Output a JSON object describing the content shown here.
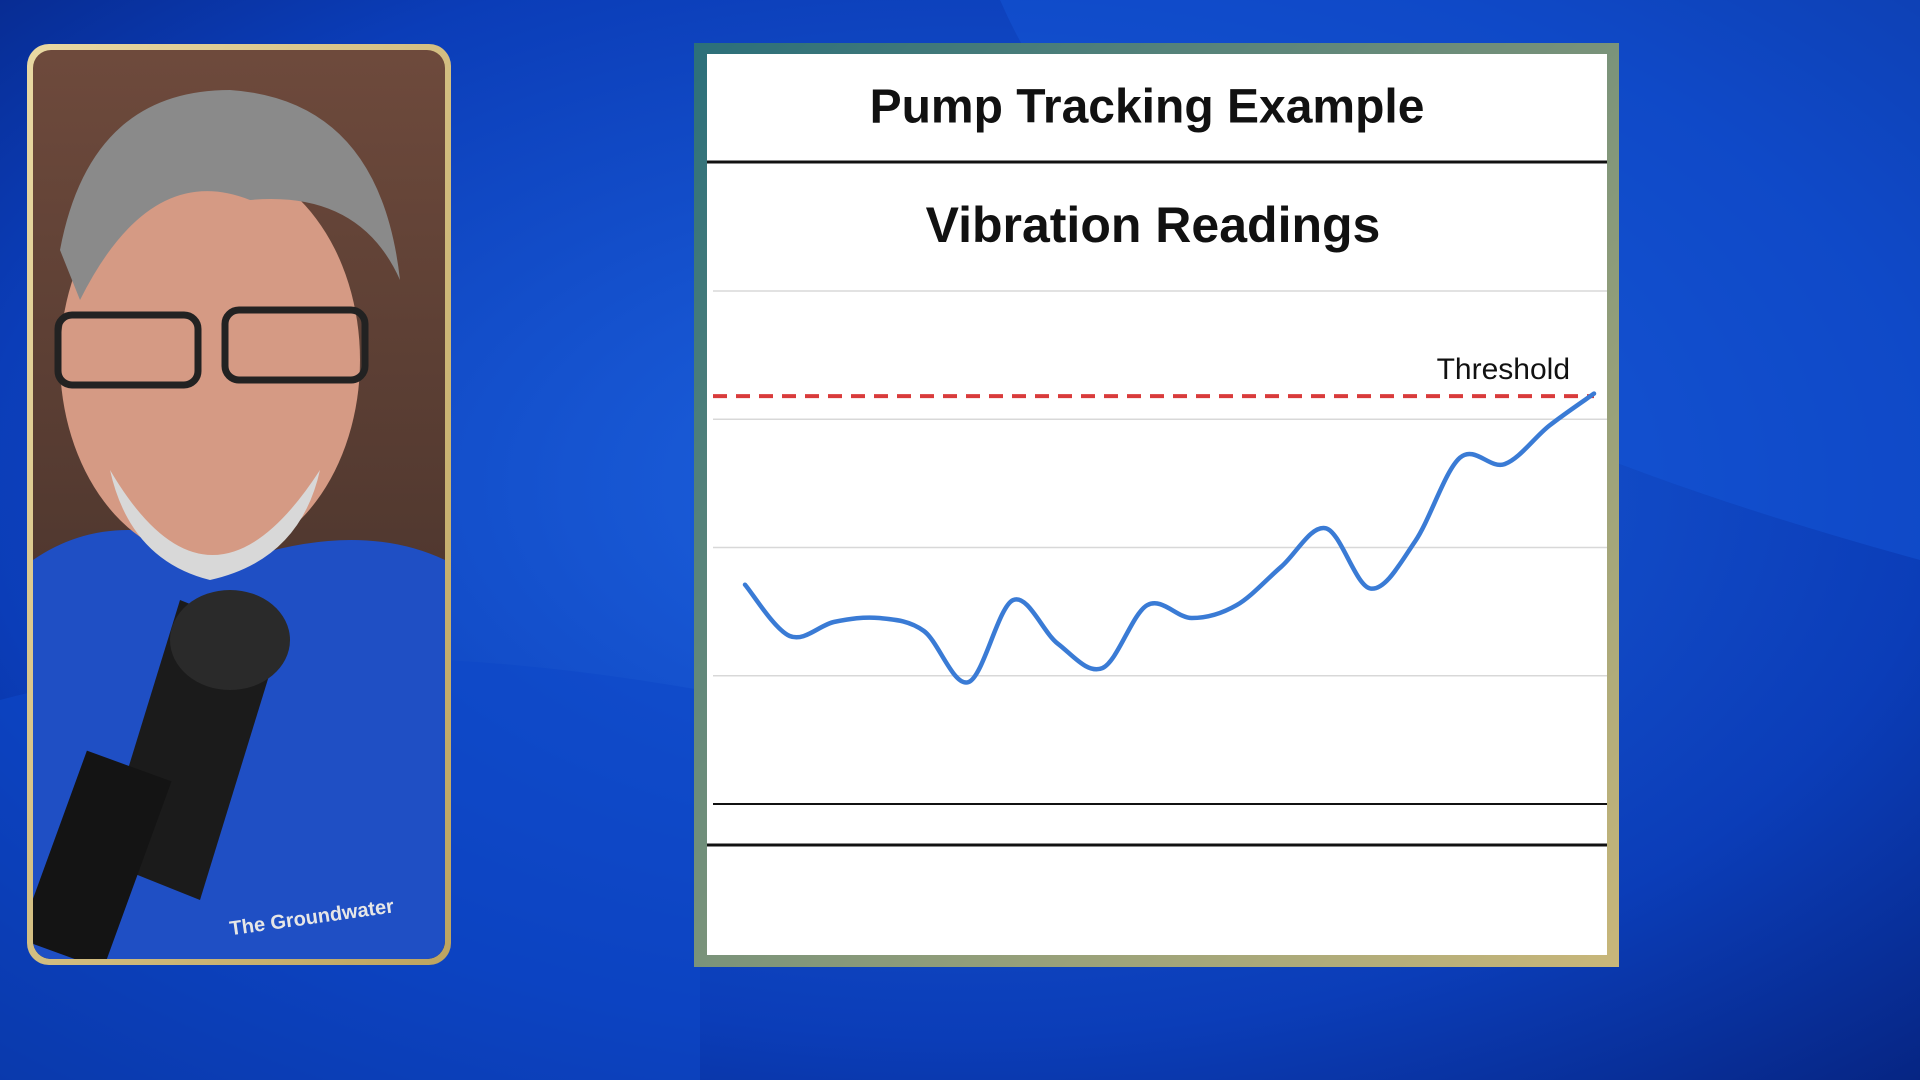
{
  "slide_title": "Pump Tracking Example",
  "video": {
    "shirt_text": "The Groundwater"
  },
  "chart_data": {
    "type": "line",
    "title": "Vibration Readings",
    "values": [
      1.71,
      1.31,
      1.42,
      1.45,
      1.35,
      0.95,
      1.59,
      1.25,
      1.06,
      1.55,
      1.45,
      1.55,
      1.85,
      2.15,
      1.68,
      2.05,
      2.7,
      2.65,
      2.95,
      3.2
    ],
    "color": "#3a7bd5",
    "ylim": [
      0,
      4
    ],
    "yticks": [
      0,
      1,
      2,
      3,
      4
    ],
    "grid": true,
    "threshold": {
      "label": "Threshold",
      "value": 3.18,
      "color": "#d93b3b"
    }
  }
}
